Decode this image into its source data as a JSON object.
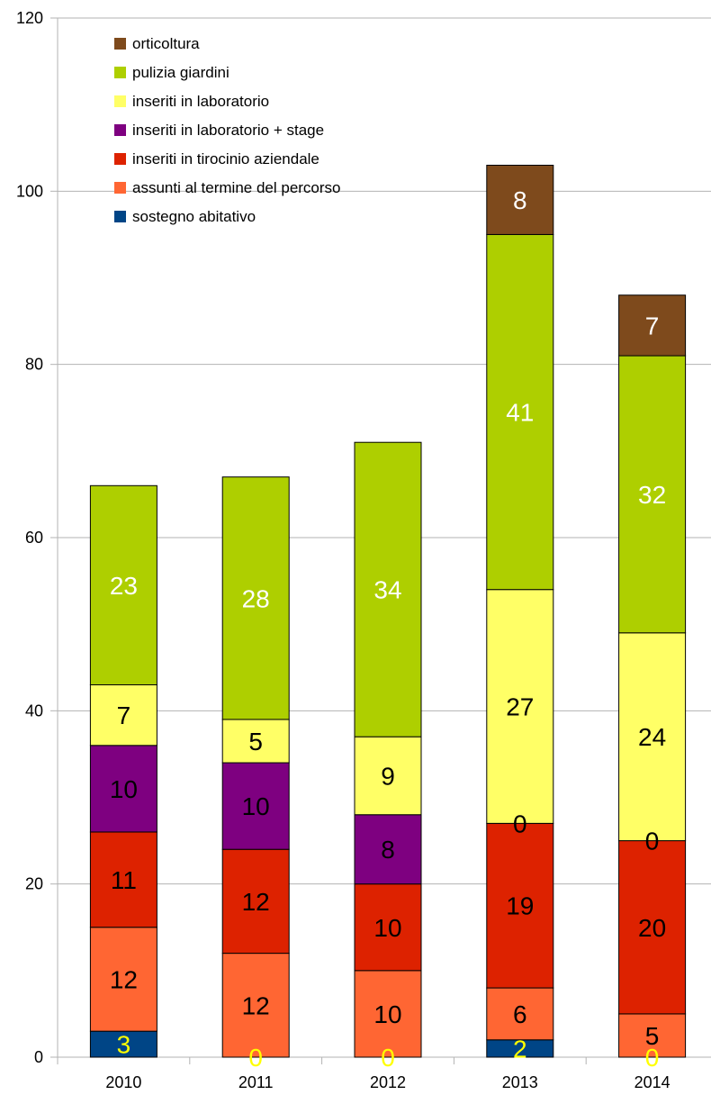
{
  "chart_data": {
    "type": "bar",
    "stacked": true,
    "categories": [
      "2010",
      "2011",
      "2012",
      "2013",
      "2014"
    ],
    "ylim": [
      0,
      120
    ],
    "yticks": [
      0,
      20,
      40,
      60,
      80,
      100,
      120
    ],
    "grid": true,
    "legend_position": "top-left",
    "series": [
      {
        "name": "sostegno abitativo",
        "color": "#004586",
        "label_color": "#ffff00",
        "values": [
          3,
          0,
          0,
          2,
          0
        ]
      },
      {
        "name": "assunti al termine del percorso",
        "color": "#ff6633",
        "label_color": "#000000",
        "values": [
          12,
          12,
          10,
          6,
          5
        ]
      },
      {
        "name": "inseriti in tirocinio aziendale",
        "color": "#dd2200",
        "label_color": "#000000",
        "values": [
          11,
          12,
          10,
          19,
          20
        ]
      },
      {
        "name": "inseriti in laboratorio + stage",
        "color": "#7e0080",
        "label_color": "#000000",
        "values": [
          10,
          10,
          8,
          0,
          0
        ]
      },
      {
        "name": "inseriti in laboratorio",
        "color": "#ffff66",
        "label_color": "#000000",
        "values": [
          7,
          5,
          9,
          27,
          24
        ]
      },
      {
        "name": "pulizia giardini",
        "color": "#aecf00",
        "label_color": "#ffffff",
        "values": [
          23,
          28,
          34,
          41,
          32
        ]
      },
      {
        "name": "orticoltura",
        "color": "#7e4a1c",
        "label_color": "#ffffff",
        "values": [
          0,
          0,
          0,
          8,
          7
        ]
      }
    ]
  }
}
